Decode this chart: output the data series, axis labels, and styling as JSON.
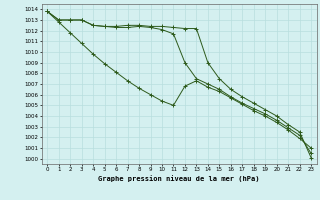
{
  "title": "Graphe pression niveau de la mer (hPa)",
  "background_color": "#d4f0f0",
  "grid_color": "#b8dede",
  "line_color": "#2d5a1b",
  "xlim": [
    -0.5,
    23.5
  ],
  "ylim": [
    999.5,
    1014.5
  ],
  "xticks": [
    0,
    1,
    2,
    3,
    4,
    5,
    6,
    7,
    8,
    9,
    10,
    11,
    12,
    13,
    14,
    15,
    16,
    17,
    18,
    19,
    20,
    21,
    22,
    23
  ],
  "yticks": [
    1000,
    1001,
    1002,
    1003,
    1004,
    1005,
    1006,
    1007,
    1008,
    1009,
    1010,
    1011,
    1012,
    1013,
    1014
  ],
  "series": [
    {
      "x": [
        0,
        1,
        2,
        3,
        4,
        5,
        6,
        7,
        8,
        9,
        10,
        11,
        12,
        13,
        14,
        15,
        16,
        17,
        18,
        19,
        20,
        21,
        22,
        23
      ],
      "y": [
        1013.8,
        1013.0,
        1013.0,
        1013.0,
        1012.5,
        1012.4,
        1012.4,
        1012.5,
        1012.5,
        1012.4,
        1012.4,
        1012.3,
        1012.2,
        1012.2,
        1009.0,
        1007.5,
        1006.5,
        1005.8,
        1005.2,
        1004.6,
        1004.0,
        1003.2,
        1002.5,
        1000.1
      ],
      "marker": "+"
    },
    {
      "x": [
        0,
        1,
        2,
        3,
        4,
        5,
        6,
        7,
        8,
        9,
        10,
        11,
        12,
        13,
        14,
        15,
        16,
        17,
        18,
        19,
        20,
        21,
        22,
        23
      ],
      "y": [
        1013.8,
        1013.0,
        1013.0,
        1013.0,
        1012.5,
        1012.4,
        1012.3,
        1012.3,
        1012.4,
        1012.3,
        1012.1,
        1011.7,
        1009.0,
        1007.5,
        1007.0,
        1006.5,
        1005.8,
        1005.2,
        1004.7,
        1004.2,
        1003.6,
        1002.9,
        1002.2,
        1000.5
      ],
      "marker": "+"
    },
    {
      "x": [
        0,
        1,
        2,
        3,
        4,
        5,
        6,
        7,
        8,
        9,
        10,
        11,
        12,
        13,
        14,
        15,
        16,
        17,
        18,
        19,
        20,
        21,
        22,
        23
      ],
      "y": [
        1013.8,
        1012.8,
        1011.8,
        1010.8,
        1009.8,
        1008.9,
        1008.1,
        1007.3,
        1006.6,
        1006.0,
        1005.4,
        1005.0,
        1006.8,
        1007.3,
        1006.7,
        1006.3,
        1005.7,
        1005.1,
        1004.5,
        1004.0,
        1003.4,
        1002.7,
        1001.9,
        1001.0
      ],
      "marker": "+"
    }
  ]
}
